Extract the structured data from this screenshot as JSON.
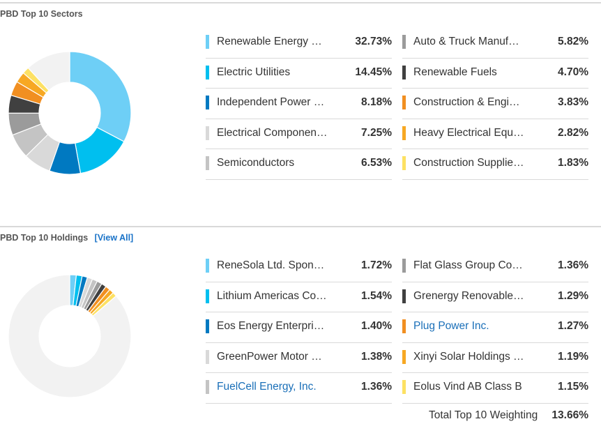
{
  "sectors": {
    "title": "PBD Top 10 Sectors",
    "rows": [
      {
        "name": "Renewable Energy …",
        "value": "32.73%",
        "color": "#6ecff6"
      },
      {
        "name": "Electric Utilities",
        "value": "14.45%",
        "color": "#00bfef"
      },
      {
        "name": "Independent Power …",
        "value": "8.18%",
        "color": "#0079c1"
      },
      {
        "name": "Electrical Componen…",
        "value": "7.25%",
        "color": "#d9d9d9"
      },
      {
        "name": "Semiconductors",
        "value": "6.53%",
        "color": "#c4c4c4"
      },
      {
        "name": "Auto & Truck Manuf…",
        "value": "5.82%",
        "color": "#9b9b9b"
      },
      {
        "name": "Renewable Fuels",
        "value": "4.70%",
        "color": "#404040"
      },
      {
        "name": "Construction & Engi…",
        "value": "3.83%",
        "color": "#f18f21"
      },
      {
        "name": "Heavy Electrical Equ…",
        "value": "2.82%",
        "color": "#f7a823"
      },
      {
        "name": "Construction Supplie…",
        "value": "1.83%",
        "color": "#fde163"
      }
    ]
  },
  "holdings": {
    "title": "PBD Top 10 Holdings",
    "view_all": "[View All]",
    "rows": [
      {
        "name": "ReneSola Ltd. Spon…",
        "value": "1.72%",
        "color": "#6ecff6",
        "link": false
      },
      {
        "name": "Lithium Americas Co…",
        "value": "1.54%",
        "color": "#00bfef",
        "link": false
      },
      {
        "name": "Eos Energy Enterpri…",
        "value": "1.40%",
        "color": "#0079c1",
        "link": false
      },
      {
        "name": "GreenPower Motor …",
        "value": "1.38%",
        "color": "#d9d9d9",
        "link": false
      },
      {
        "name": "FuelCell Energy, Inc.",
        "value": "1.36%",
        "color": "#c4c4c4",
        "link": true
      },
      {
        "name": "Flat Glass Group Co…",
        "value": "1.36%",
        "color": "#9b9b9b",
        "link": false
      },
      {
        "name": "Grenergy Renovable…",
        "value": "1.29%",
        "color": "#404040",
        "link": false
      },
      {
        "name": "Plug Power Inc.",
        "value": "1.27%",
        "color": "#f18f21",
        "link": true
      },
      {
        "name": "Xinyi Solar Holdings …",
        "value": "1.19%",
        "color": "#f7a823",
        "link": false
      },
      {
        "name": "Eolus Vind AB Class B",
        "value": "1.15%",
        "color": "#fde163",
        "link": false
      }
    ],
    "total_label": "Total Top 10 Weighting",
    "total_value": "13.66%"
  },
  "chart_data": [
    {
      "type": "pie",
      "title": "PBD Top 10 Sectors",
      "categories": [
        "Renewable Energy …",
        "Electric Utilities",
        "Independent Power …",
        "Electrical Componen…",
        "Semiconductors",
        "Auto & Truck Manuf…",
        "Renewable Fuels",
        "Construction & Engi…",
        "Heavy Electrical Equ…",
        "Construction Supplie…"
      ],
      "values": [
        32.73,
        14.45,
        8.18,
        7.25,
        6.53,
        5.82,
        4.7,
        3.83,
        2.82,
        1.83
      ],
      "colors": [
        "#6ecff6",
        "#00bfef",
        "#0079c1",
        "#d9d9d9",
        "#c4c4c4",
        "#9b9b9b",
        "#404040",
        "#f18f21",
        "#f7a823",
        "#fde163"
      ],
      "remainder_color": "#f2f2f2"
    },
    {
      "type": "pie",
      "title": "PBD Top 10 Holdings",
      "categories": [
        "ReneSola Ltd. Spon…",
        "Lithium Americas Co…",
        "Eos Energy Enterpri…",
        "GreenPower Motor …",
        "FuelCell Energy, Inc.",
        "Flat Glass Group Co…",
        "Grenergy Renovable…",
        "Plug Power Inc.",
        "Xinyi Solar Holdings …",
        "Eolus Vind AB Class B"
      ],
      "values": [
        1.72,
        1.54,
        1.4,
        1.38,
        1.36,
        1.36,
        1.29,
        1.27,
        1.19,
        1.15
      ],
      "colors": [
        "#6ecff6",
        "#00bfef",
        "#0079c1",
        "#d9d9d9",
        "#c4c4c4",
        "#9b9b9b",
        "#404040",
        "#f18f21",
        "#f7a823",
        "#fde163"
      ],
      "remainder_color": "#f2f2f2"
    }
  ]
}
